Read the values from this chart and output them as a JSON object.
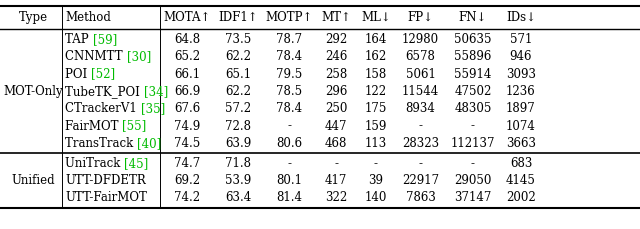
{
  "columns": [
    "Type",
    "Method",
    "MOTA↑",
    "IDF1↑",
    "MOTP↑",
    "MT↑",
    "ML↓",
    "FP↓",
    "FN↓",
    "IDs↓"
  ],
  "mot_only_rows": [
    [
      "TAP",
      "[59]",
      "64.8",
      "73.5",
      "78.7",
      "292",
      "164",
      "12980",
      "50635",
      "571"
    ],
    [
      "CNNMTT",
      "[30]",
      "65.2",
      "62.2",
      "78.4",
      "246",
      "162",
      "6578",
      "55896",
      "946"
    ],
    [
      "POI",
      "[52]",
      "66.1",
      "65.1",
      "79.5",
      "258",
      "158",
      "5061",
      "55914",
      "3093"
    ],
    [
      "TubeTK_POI",
      "[34]",
      "66.9",
      "62.2",
      "78.5",
      "296",
      "122",
      "11544",
      "47502",
      "1236"
    ],
    [
      "CTrackerV1",
      "[35]",
      "67.6",
      "57.2",
      "78.4",
      "250",
      "175",
      "8934",
      "48305",
      "1897"
    ],
    [
      "FairMOT",
      "[55]",
      "74.9",
      "72.8",
      "-",
      "447",
      "159",
      "-",
      "-",
      "1074"
    ],
    [
      "TransTrack",
      "[40]",
      "74.5",
      "63.9",
      "80.6",
      "468",
      "113",
      "28323",
      "112137",
      "3663"
    ]
  ],
  "unified_rows": [
    [
      "UniTrack",
      "[45]",
      "74.7",
      "71.8",
      "-",
      "-",
      "-",
      "-",
      "-",
      "683"
    ],
    [
      "UTT-DFDETR",
      "",
      "69.2",
      "53.9",
      "80.1",
      "417",
      "39",
      "22917",
      "29050",
      "4145"
    ],
    [
      "UTT-FairMOT",
      "",
      "74.2",
      "63.4",
      "81.4",
      "322",
      "140",
      "7863",
      "37147",
      "2002"
    ]
  ],
  "ref_color": "#00bb00",
  "text_color": "#000000",
  "font_size": 8.5
}
